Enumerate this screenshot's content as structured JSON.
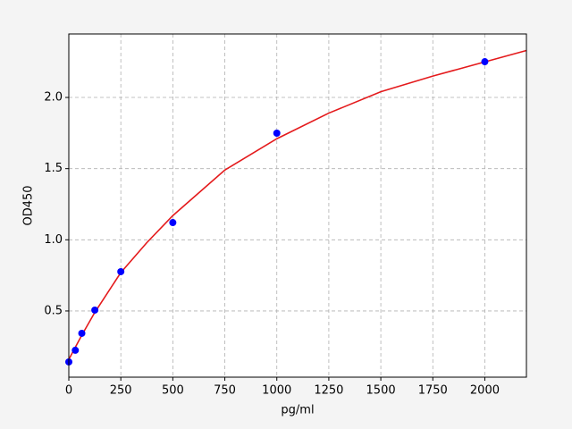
{
  "chart_data": {
    "type": "scatter",
    "x_label": "pg/ml",
    "y_label": "OD450",
    "xlim": [
      0,
      2200
    ],
    "ylim": [
      0.035,
      2.446
    ],
    "xticks": [
      0,
      250,
      500,
      750,
      1000,
      1250,
      1500,
      1750,
      2000
    ],
    "yticks": [
      0.5,
      {
        "value": 1.0,
        "label": "1.0"
      },
      1.5,
      {
        "value": 2.0,
        "label": "2.0"
      }
    ],
    "grid": true,
    "series": [
      {
        "type": "scatter",
        "color": "#0000ff",
        "x": [
          0,
          31.25,
          62.5,
          125,
          250,
          500,
          1000,
          2000
        ],
        "values": [
          0.142,
          0.224,
          0.343,
          0.506,
          0.776,
          1.121,
          1.749,
          2.251
        ]
      },
      {
        "type": "line",
        "color": "#e41a1c",
        "x": [
          0,
          62.5,
          125,
          250,
          375,
          500,
          750,
          1000,
          1250,
          1500,
          1750,
          2000,
          2200
        ],
        "values": [
          0.16,
          0.33,
          0.49,
          0.77,
          0.98,
          1.17,
          1.49,
          1.71,
          1.89,
          2.04,
          2.15,
          2.25,
          2.33
        ]
      }
    ]
  }
}
